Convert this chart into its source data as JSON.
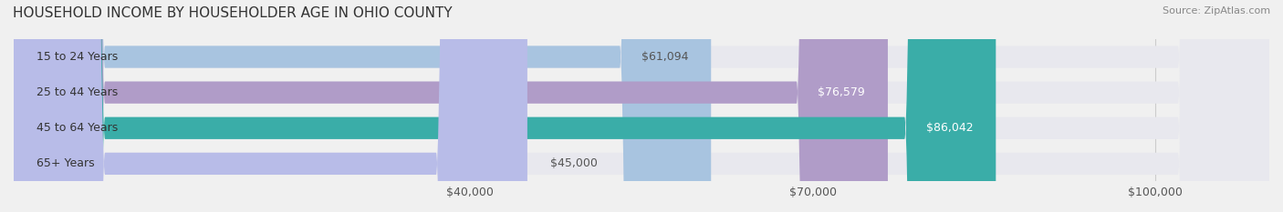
{
  "title": "HOUSEHOLD INCOME BY HOUSEHOLDER AGE IN OHIO COUNTY",
  "source": "Source: ZipAtlas.com",
  "categories": [
    "15 to 24 Years",
    "25 to 44 Years",
    "45 to 64 Years",
    "65+ Years"
  ],
  "values": [
    61094,
    76579,
    86042,
    45000
  ],
  "bar_colors": [
    "#a8c4e0",
    "#b09cc8",
    "#3aada8",
    "#b8bce8"
  ],
  "label_colors": [
    "#555555",
    "#ffffff",
    "#ffffff",
    "#555555"
  ],
  "xlabel": "",
  "ylabel": "",
  "xlim": [
    0,
    110000
  ],
  "xticks": [
    40000,
    70000,
    100000
  ],
  "xtick_labels": [
    "$40,000",
    "$70,000",
    "$100,000"
  ],
  "title_fontsize": 11,
  "source_fontsize": 8,
  "bar_label_fontsize": 9,
  "ytick_fontsize": 9,
  "xtick_fontsize": 9,
  "background_color": "#f0f0f0",
  "bar_bg_color": "#e8e8ee",
  "grid_color": "#cccccc"
}
